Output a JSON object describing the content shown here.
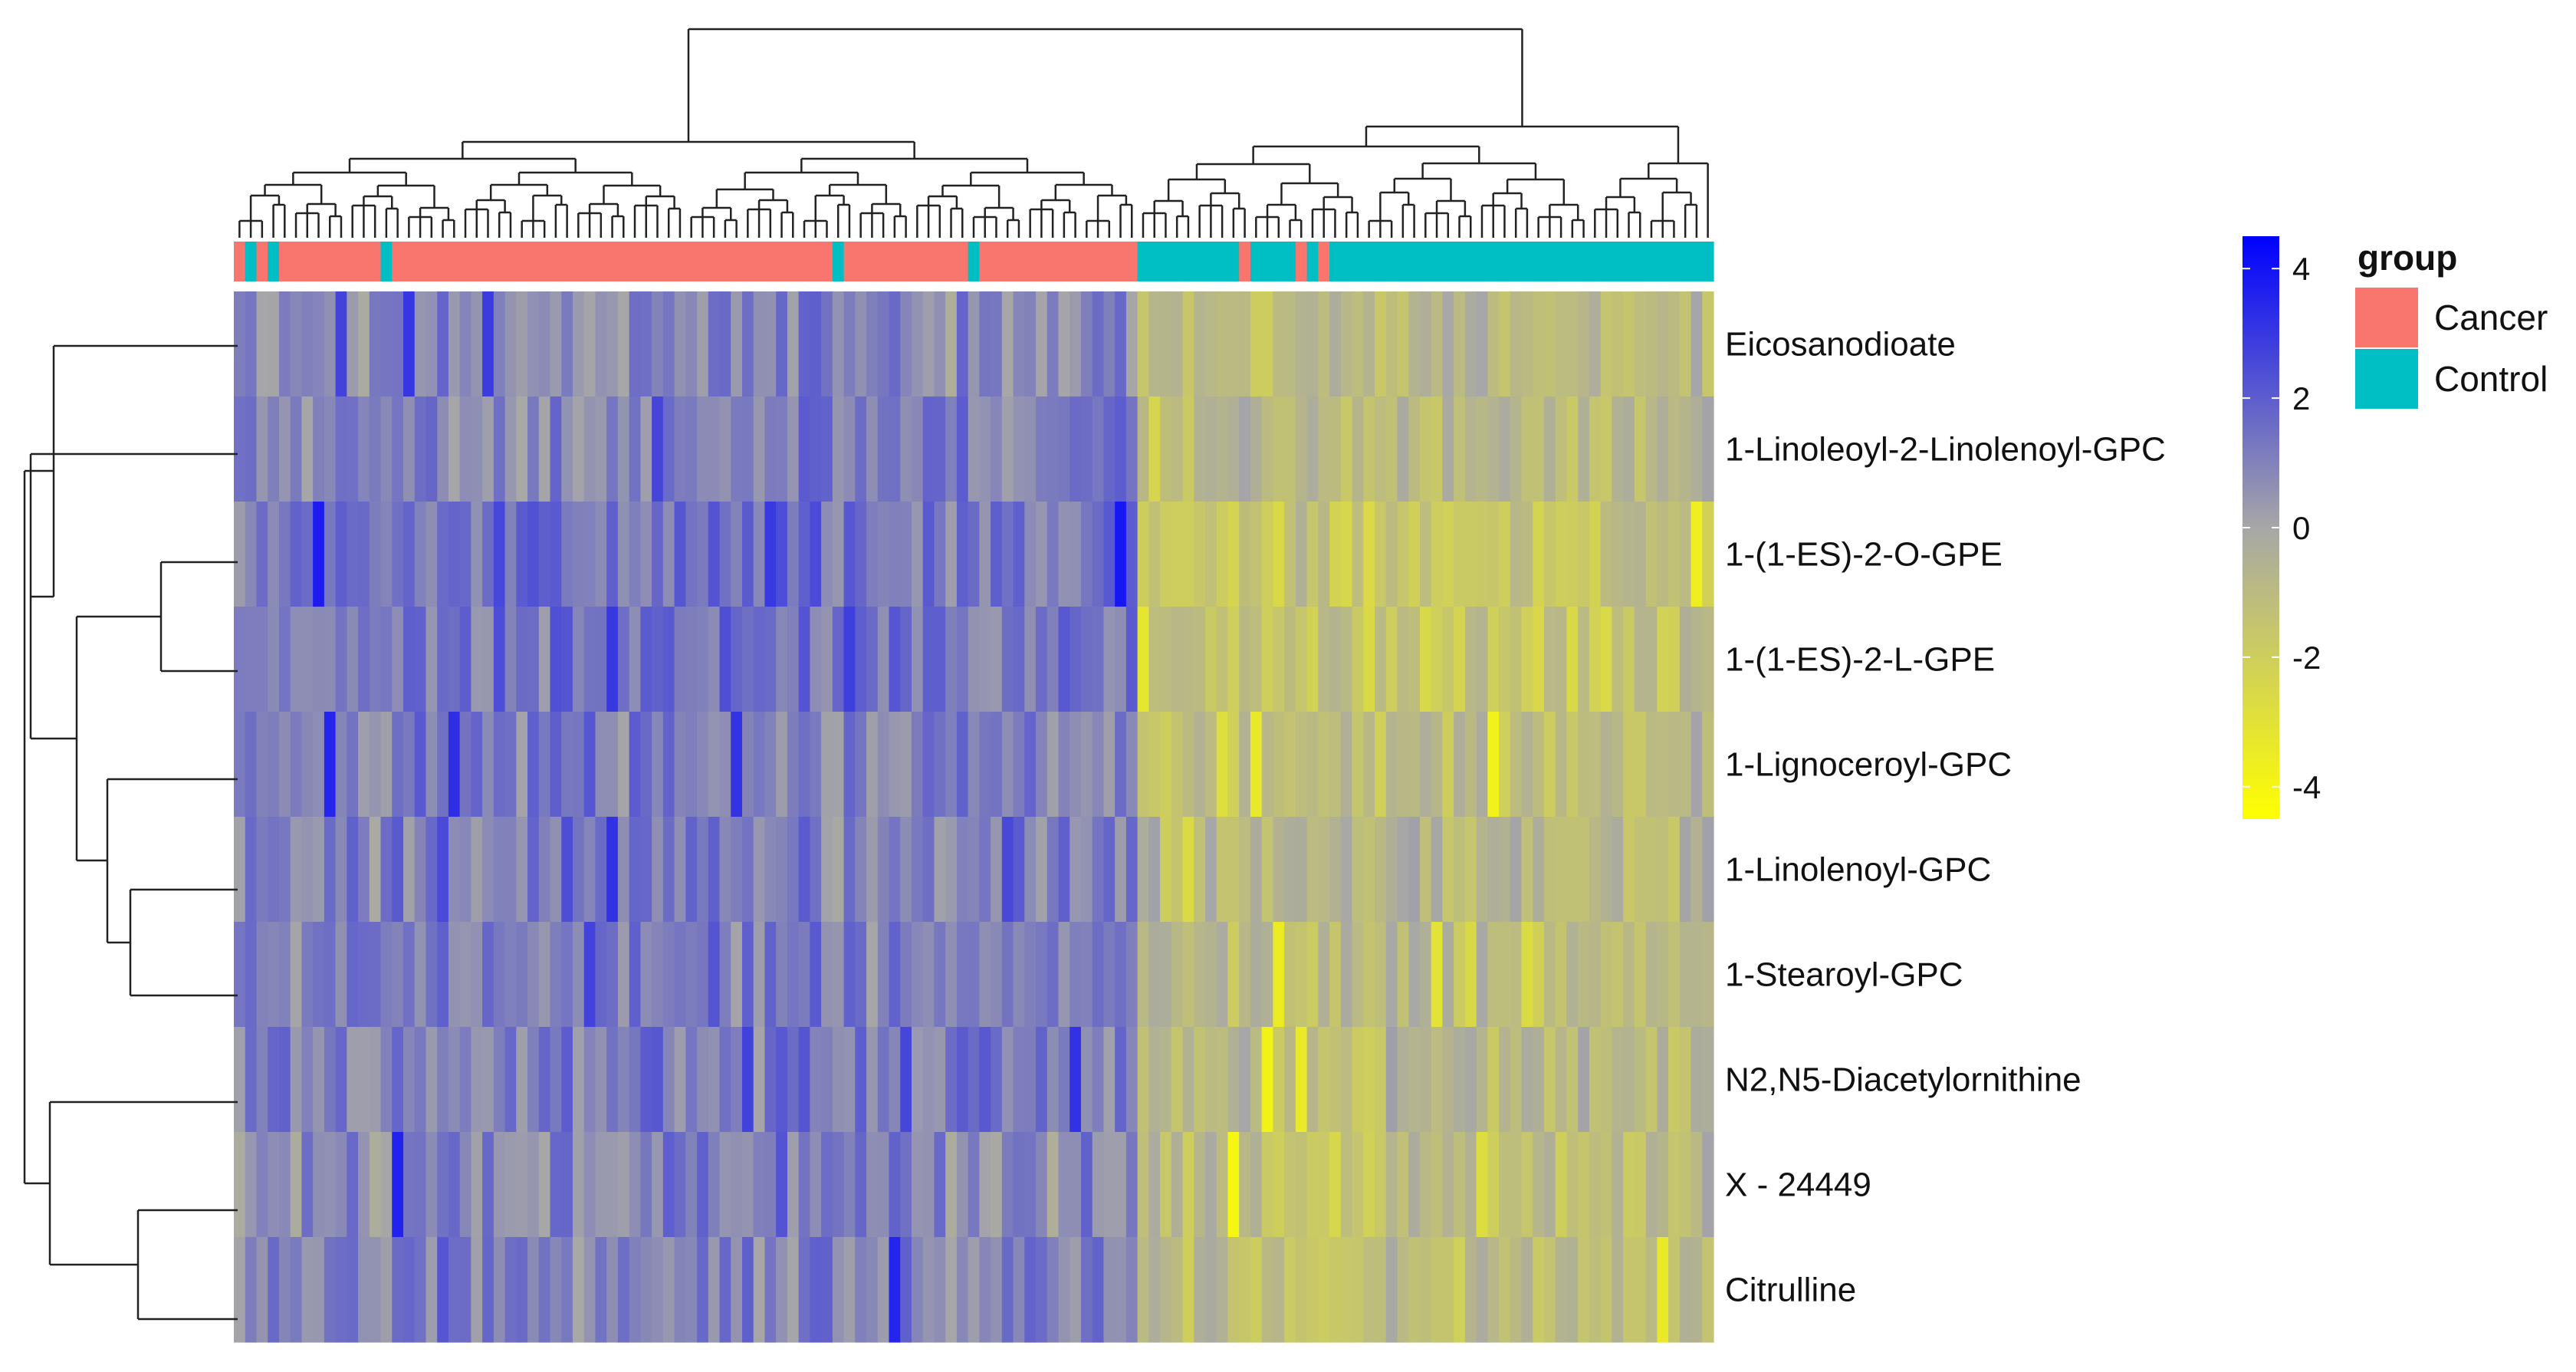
{
  "chart_data": {
    "type": "heatmap",
    "title": "",
    "rows": [
      "Eicosanodioate",
      "1-Linoleoyl-2-Linolenoyl-GPC",
      "1-(1-ES)-2-O-GPE",
      "1-(1-ES)-2-L-GPE",
      "1-Lignoceroyl-GPC",
      "1-Linolenoyl-GPC",
      "1-Stearoyl-GPC",
      "N2,N5-Diacetylornithine",
      "X - 24449",
      "Citrulline"
    ],
    "group_title": "group",
    "groups": [
      {
        "name": "Cancer",
        "color": "#F8766D"
      },
      {
        "name": "Control",
        "color": "#00BFC4"
      }
    ],
    "column_groups": [
      "Cancer",
      "Control",
      "Cancer",
      "Control",
      "Cancer",
      "Cancer",
      "Cancer",
      "Cancer",
      "Cancer",
      "Cancer",
      "Cancer",
      "Cancer",
      "Cancer",
      "Control",
      "Cancer",
      "Cancer",
      "Cancer",
      "Cancer",
      "Cancer",
      "Cancer",
      "Cancer",
      "Cancer",
      "Cancer",
      "Cancer",
      "Cancer",
      "Cancer",
      "Cancer",
      "Cancer",
      "Cancer",
      "Cancer",
      "Cancer",
      "Cancer",
      "Cancer",
      "Cancer",
      "Cancer",
      "Cancer",
      "Cancer",
      "Cancer",
      "Cancer",
      "Cancer",
      "Cancer",
      "Cancer",
      "Cancer",
      "Cancer",
      "Cancer",
      "Cancer",
      "Cancer",
      "Cancer",
      "Cancer",
      "Cancer",
      "Cancer",
      "Cancer",
      "Cancer",
      "Control",
      "Cancer",
      "Cancer",
      "Cancer",
      "Cancer",
      "Cancer",
      "Cancer",
      "Cancer",
      "Cancer",
      "Cancer",
      "Cancer",
      "Cancer",
      "Control",
      "Cancer",
      "Cancer",
      "Cancer",
      "Cancer",
      "Cancer",
      "Cancer",
      "Cancer",
      "Cancer",
      "Cancer",
      "Cancer",
      "Cancer",
      "Cancer",
      "Cancer",
      "Cancer",
      "Control",
      "Control",
      "Control",
      "Control",
      "Control",
      "Control",
      "Control",
      "Control",
      "Control",
      "Cancer",
      "Control",
      "Control",
      "Control",
      "Control",
      "Cancer",
      "Control",
      "Cancer",
      "Control",
      "Control",
      "Control",
      "Control",
      "Control",
      "Control",
      "Control",
      "Control",
      "Control",
      "Control",
      "Control",
      "Control",
      "Control",
      "Control",
      "Control",
      "Control",
      "Control",
      "Control",
      "Control",
      "Control",
      "Control",
      "Control",
      "Control",
      "Control",
      "Control",
      "Control",
      "Control",
      "Control",
      "Control",
      "Control",
      "Control",
      "Control",
      "Control",
      "Control"
    ],
    "row_profiles": [
      {
        "cancer_mean": 0.8,
        "control_mean": -1.0
      },
      {
        "cancer_mean": 1.0,
        "control_mean": -0.9
      },
      {
        "cancer_mean": 1.4,
        "control_mean": -1.6
      },
      {
        "cancer_mean": 1.3,
        "control_mean": -1.5
      },
      {
        "cancer_mean": 1.0,
        "control_mean": -1.0
      },
      {
        "cancer_mean": 1.0,
        "control_mean": -0.9
      },
      {
        "cancer_mean": 1.1,
        "control_mean": -1.0
      },
      {
        "cancer_mean": 1.1,
        "control_mean": -1.0
      },
      {
        "cancer_mean": 0.9,
        "control_mean": -1.1
      },
      {
        "cancer_mean": 1.0,
        "control_mean": -1.2
      }
    ],
    "color_scale": {
      "min": -4.5,
      "max": 4.5,
      "colors": [
        "#FFFF00",
        "#A7A7A7",
        "#0000FF"
      ],
      "ticks": [
        4,
        2,
        0,
        -2,
        -4
      ]
    }
  }
}
